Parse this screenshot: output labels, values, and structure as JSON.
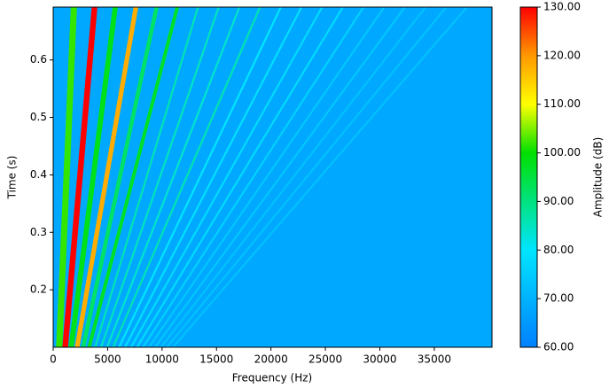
{
  "chart_data": {
    "type": "spectrogram",
    "x_label": "Frequency (Hz)",
    "y_label": "Time (s)",
    "colorbar_label": "Amplitude (dB)",
    "xlim": [
      0,
      40300
    ],
    "ylim": [
      0.1,
      0.692
    ],
    "xticks": [
      0,
      5000,
      10000,
      15000,
      20000,
      25000,
      30000,
      35000
    ],
    "yticks": [
      0.2,
      0.3,
      0.4,
      0.5,
      0.6
    ],
    "clim": [
      60,
      130
    ],
    "cticks": [
      {
        "value": 60,
        "label": "60.00"
      },
      {
        "value": 70,
        "label": "70.00"
      },
      {
        "value": 80,
        "label": "80.00"
      },
      {
        "value": 90,
        "label": "90.00"
      },
      {
        "value": 100,
        "label": "100.00"
      },
      {
        "value": 110,
        "label": "110.00"
      },
      {
        "value": 120,
        "label": "120.00"
      },
      {
        "value": 130,
        "label": "130.00"
      }
    ],
    "colormap": [
      {
        "value": 60,
        "color": "#0080ff"
      },
      {
        "value": 80,
        "color": "#00e5ff"
      },
      {
        "value": 100,
        "color": "#00e000"
      },
      {
        "value": 110,
        "color": "#ffff00"
      },
      {
        "value": 120,
        "color": "#ff9900"
      },
      {
        "value": 130,
        "color": "#ff0000"
      }
    ],
    "background_amplitude": 68,
    "ridges": [
      {
        "x": [
          550,
          1900
        ],
        "y": [
          0.1,
          0.692
        ],
        "amplitude": 102
      },
      {
        "x": [
          1100,
          3800
        ],
        "y": [
          0.1,
          0.692
        ],
        "amplitude": 130
      },
      {
        "x": [
          1650,
          5700
        ],
        "y": [
          0.1,
          0.692
        ],
        "amplitude": 98
      },
      {
        "x": [
          2200,
          7600
        ],
        "y": [
          0.1,
          0.692
        ],
        "amplitude": 118
      },
      {
        "x": [
          2750,
          9500
        ],
        "y": [
          0.1,
          0.692
        ],
        "amplitude": 92
      },
      {
        "x": [
          3300,
          11400
        ],
        "y": [
          0.1,
          0.692
        ],
        "amplitude": 97
      },
      {
        "x": [
          3850,
          13300
        ],
        "y": [
          0.1,
          0.692
        ],
        "amplitude": 86
      },
      {
        "x": [
          4400,
          15200
        ],
        "y": [
          0.1,
          0.692
        ],
        "amplitude": 85
      },
      {
        "x": [
          4950,
          17100
        ],
        "y": [
          0.1,
          0.692
        ],
        "amplitude": 84
      },
      {
        "x": [
          5500,
          19000
        ],
        "y": [
          0.1,
          0.692
        ],
        "amplitude": 86
      },
      {
        "x": [
          6050,
          20900
        ],
        "y": [
          0.1,
          0.692
        ],
        "amplitude": 80
      },
      {
        "x": [
          6600,
          22800
        ],
        "y": [
          0.1,
          0.692
        ],
        "amplitude": 79
      },
      {
        "x": [
          7150,
          24700
        ],
        "y": [
          0.1,
          0.692
        ],
        "amplitude": 78
      },
      {
        "x": [
          7700,
          26600
        ],
        "y": [
          0.1,
          0.692
        ],
        "amplitude": 78
      },
      {
        "x": [
          8250,
          28500
        ],
        "y": [
          0.1,
          0.692
        ],
        "amplitude": 76
      },
      {
        "x": [
          8800,
          30400
        ],
        "y": [
          0.1,
          0.692
        ],
        "amplitude": 74
      },
      {
        "x": [
          9350,
          32300
        ],
        "y": [
          0.1,
          0.692
        ],
        "amplitude": 74
      },
      {
        "x": [
          9900,
          34200
        ],
        "y": [
          0.1,
          0.692
        ],
        "amplitude": 73
      },
      {
        "x": [
          10450,
          36100
        ],
        "y": [
          0.1,
          0.692
        ],
        "amplitude": 73
      },
      {
        "x": [
          11000,
          38000
        ],
        "y": [
          0.1,
          0.692
        ],
        "amplitude": 73
      }
    ]
  }
}
